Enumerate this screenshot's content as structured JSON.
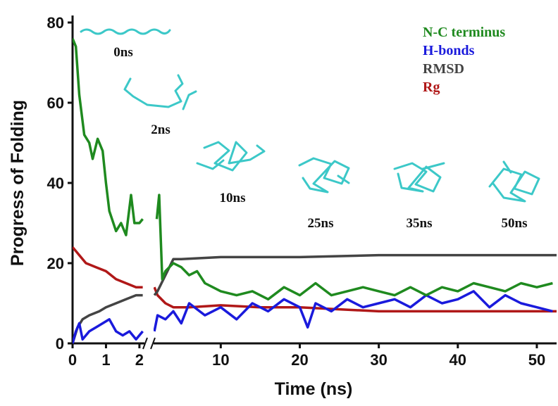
{
  "chart_data": [
    {
      "type": "line",
      "ylabel": "Progress of Folding",
      "xlim": [
        0,
        2.15
      ],
      "xticks": [
        0,
        1,
        2
      ],
      "ylim": [
        0,
        80
      ],
      "yticks": [
        0,
        20,
        40,
        60,
        80
      ],
      "series": [
        {
          "color": "#1f8a1f",
          "x": [
            0,
            0.1,
            0.2,
            0.35,
            0.5,
            0.6,
            0.75,
            0.9,
            1.0,
            1.1,
            1.3,
            1.45,
            1.6,
            1.75,
            1.85,
            2.0,
            2.1
          ],
          "values": [
            76,
            74,
            62,
            52,
            50,
            46,
            51,
            48,
            40,
            33,
            28,
            30,
            27,
            37,
            30,
            30,
            31
          ]
        },
        {
          "color": "#1a1adc",
          "x": [
            0,
            0.1,
            0.2,
            0.3,
            0.5,
            0.7,
            0.9,
            1.1,
            1.3,
            1.5,
            1.7,
            1.9,
            2.1
          ],
          "values": [
            0,
            3,
            5,
            1,
            3,
            4,
            5,
            6,
            3,
            2,
            3,
            1,
            3
          ]
        },
        {
          "color": "#444444",
          "x": [
            0,
            0.15,
            0.3,
            0.5,
            0.8,
            1.0,
            1.3,
            1.6,
            1.9,
            2.1
          ],
          "values": [
            0,
            4,
            6,
            7,
            8,
            9,
            10,
            11,
            12,
            12
          ]
        },
        {
          "color": "#b01818",
          "x": [
            0,
            0.2,
            0.4,
            0.7,
            1.0,
            1.3,
            1.6,
            1.9,
            2.1
          ],
          "values": [
            24,
            22,
            20,
            19,
            18,
            16,
            15,
            14,
            14
          ]
        }
      ]
    },
    {
      "type": "line",
      "xlabel": "Time (ns)",
      "xlim": [
        1.5,
        52.5
      ],
      "xticks": [
        10,
        20,
        30,
        40,
        50
      ],
      "ylim": [
        0,
        80
      ],
      "legend": "upper right",
      "annotations": [
        "0ns",
        "2ns",
        "10ns",
        "25ns",
        "35ns",
        "50ns"
      ],
      "series": [
        {
          "name": "N-C terminus",
          "color": "#1f8a1f",
          "x": [
            1.9,
            2.2,
            2.6,
            3,
            4,
            5,
            6,
            7,
            8,
            9,
            10,
            12,
            14,
            16,
            18,
            20,
            22,
            24,
            26,
            28,
            30,
            32,
            34,
            36,
            38,
            40,
            42,
            44,
            46,
            48,
            50,
            52
          ],
          "values": [
            31,
            37,
            16,
            18,
            20,
            19,
            17,
            18,
            15,
            14,
            13,
            12,
            13,
            11,
            14,
            12,
            15,
            12,
            13,
            14,
            13,
            12,
            14,
            12,
            14,
            13,
            15,
            14,
            13,
            15,
            14,
            15
          ]
        },
        {
          "name": "H-bonds",
          "color": "#1a1adc",
          "x": [
            1.6,
            2,
            3,
            4,
            5,
            6,
            8,
            10,
            12,
            14,
            16,
            18,
            20,
            21,
            22,
            24,
            26,
            28,
            30,
            32,
            34,
            36,
            38,
            40,
            42,
            44,
            46,
            48,
            50,
            52
          ],
          "values": [
            3,
            7,
            6,
            8,
            5,
            10,
            7,
            9,
            6,
            10,
            8,
            11,
            9,
            4,
            10,
            8,
            11,
            9,
            10,
            11,
            9,
            12,
            10,
            11,
            13,
            9,
            12,
            10,
            9,
            8
          ]
        },
        {
          "name": "RMSD",
          "color": "#444444",
          "x": [
            1.6,
            2,
            3,
            4,
            5,
            10,
            20,
            30,
            40,
            50,
            52.5
          ],
          "values": [
            12,
            13,
            17,
            21,
            21,
            21.5,
            21.5,
            22,
            22,
            22,
            22
          ]
        },
        {
          "name": "Rg",
          "color": "#b01818",
          "x": [
            1.6,
            2,
            3,
            4,
            6,
            10,
            15,
            20,
            25,
            30,
            40,
            50,
            52.5
          ],
          "values": [
            14,
            12,
            10,
            9,
            9,
            9.5,
            9,
            9,
            8.5,
            8,
            8,
            8,
            8
          ]
        }
      ]
    }
  ]
}
